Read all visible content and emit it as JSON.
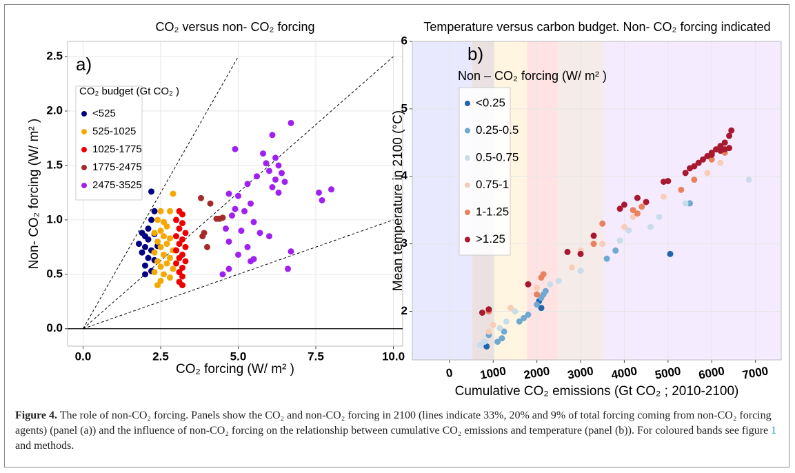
{
  "chart_data": [
    {
      "type": "scatter",
      "title": "CO₂ versus non- CO₂ forcing",
      "panel_label": "a)",
      "x_label": "CO₂ forcing (W/ m² )",
      "y_label": "Non- CO₂ forcing (W/ m² )",
      "xlim": [
        -0.5,
        10.3
      ],
      "ylim": [
        -0.16,
        2.64
      ],
      "xticks": [
        {
          "value": 0,
          "label": "0.0"
        },
        2.5,
        {
          "value": 5,
          "label": "5.0"
        },
        7.5,
        {
          "value": 10,
          "label": "10.0"
        }
      ],
      "yticks": [
        {
          "value": 0,
          "label": "0.0"
        },
        0.5,
        {
          "value": 1,
          "label": "1.0"
        },
        1.5,
        {
          "value": 2,
          "label": "2.0"
        },
        2.5
      ],
      "grid": true,
      "legend_title": "CO₂ budget (Gt CO₂ )",
      "hline": 0,
      "lines": [
        {
          "x": [
            0,
            5
          ],
          "y": [
            0,
            2.5
          ]
        },
        {
          "x": [
            0,
            10
          ],
          "y": [
            0,
            2.5
          ]
        },
        {
          "x": [
            0,
            10
          ],
          "y": [
            0,
            1
          ]
        }
      ],
      "series": [
        {
          "name": "<525",
          "color": "#000080",
          "x": [
            2.2,
            2.3,
            2.2,
            1.9,
            2.0,
            2.1,
            2.3,
            1.8,
            2.0,
            2.2,
            1.9,
            2.1,
            2.3,
            2.0,
            2.2,
            2.0,
            2.4,
            2.1
          ],
          "values": [
            1.26,
            1.08,
            1.0,
            0.88,
            0.85,
            0.82,
            0.87,
            0.78,
            0.75,
            0.72,
            0.7,
            0.65,
            0.63,
            0.58,
            0.53,
            0.5,
            0.76,
            0.92
          ]
        },
        {
          "name": "525-1025",
          "color": "#f5a800",
          "x": [
            2.9,
            2.5,
            2.8,
            2.4,
            2.6,
            2.7,
            2.5,
            2.3,
            2.6,
            2.8,
            2.4,
            2.7,
            2.5,
            2.9,
            2.3,
            2.6,
            2.8,
            2.4,
            2.7,
            2.5,
            2.9,
            2.3,
            2.6,
            2.8,
            2.5,
            2.4
          ],
          "values": [
            1.24,
            1.08,
            1.08,
            1.0,
            0.98,
            0.94,
            0.9,
            0.88,
            0.85,
            0.83,
            0.8,
            0.78,
            0.75,
            0.72,
            0.7,
            0.68,
            0.65,
            0.62,
            0.6,
            0.57,
            0.55,
            0.52,
            0.5,
            0.47,
            0.44,
            0.4
          ]
        },
        {
          "name": "1025-1775",
          "color": "#ee0000",
          "x": [
            3.1,
            3.2,
            3.0,
            3.2,
            3.1,
            3.3,
            3.0,
            3.2,
            3.1,
            3.3,
            3.0,
            3.2,
            3.1,
            3.3,
            3.0,
            3.2,
            3.1,
            3.2,
            3.1,
            3.2
          ],
          "values": [
            1.08,
            1.05,
            1.0,
            0.97,
            0.92,
            0.88,
            0.85,
            0.82,
            0.78,
            0.75,
            0.72,
            0.68,
            0.65,
            0.62,
            0.6,
            0.56,
            0.52,
            0.48,
            0.43,
            0.4
          ]
        },
        {
          "name": "1775-2475",
          "color": "#a52a2a",
          "x": [
            3.8,
            4.1,
            4.3,
            4.4,
            4.5,
            3.9,
            3.85,
            4.0
          ],
          "values": [
            1.2,
            1.15,
            1.01,
            1.01,
            1.02,
            0.88,
            0.85,
            0.75
          ]
        },
        {
          "name": "2475-3525",
          "color": "#a020f0",
          "x": [
            6.7,
            6.1,
            4.9,
            5.8,
            6.2,
            5.9,
            6.3,
            6.0,
            6.4,
            5.6,
            6.2,
            6.5,
            5.3,
            6.1,
            6.3,
            4.7,
            5.0,
            7.6,
            8.0,
            7.7,
            5.4,
            4.9,
            5.2,
            4.8,
            5.5,
            4.6,
            5.1,
            5.7,
            6.0,
            4.7,
            5.3,
            6.7,
            5.0,
            5.4,
            5.5,
            6.6,
            4.5,
            4.7
          ],
          "values": [
            1.89,
            1.78,
            1.65,
            1.61,
            1.57,
            1.52,
            1.5,
            1.45,
            1.43,
            1.4,
            1.37,
            1.35,
            1.33,
            1.3,
            1.25,
            1.24,
            1.22,
            1.25,
            1.28,
            1.18,
            1.15,
            1.1,
            1.08,
            1.04,
            0.98,
            0.92,
            0.9,
            0.88,
            0.85,
            0.8,
            0.75,
            0.71,
            0.68,
            0.62,
            0.64,
            0.55,
            0.5,
            0.55
          ]
        }
      ]
    },
    {
      "type": "scatter",
      "title": "Temperature versus carbon budget. Non- CO₂ forcing indicated",
      "panel_label": "b)",
      "x_label": "Cumulative CO₂ emissions (Gt CO₂ ; 2010-2100)",
      "y_label": "Mean temperature in 2100 (°C)",
      "xlim": [
        -850,
        7590
      ],
      "ylim": [
        1.28,
        6
      ],
      "xticks": [
        0,
        1000,
        2000,
        3000,
        4000,
        5000,
        6000,
        7000
      ],
      "yticks": [
        2,
        3,
        4,
        5,
        6
      ],
      "grid": true,
      "legend_title": "Non – CO₂ forcing (W/ m² )",
      "bands": [
        {
          "to": 1025,
          "color": "#7070ff"
        },
        {
          "from": 525,
          "to": 1775,
          "color": "#ffc040"
        },
        {
          "from": 1775,
          "to": 2475,
          "color": "#ff5050"
        },
        {
          "from": 2475,
          "to": 3525,
          "color": "#c08070"
        },
        {
          "from": 3525,
          "color": "#c080ff"
        }
      ],
      "series": [
        {
          "name": "<0.25",
          "color": "#2166ac",
          "x": [
            5050,
            850,
            2100,
            2050
          ],
          "values": [
            2.85,
            1.48,
            2.05,
            2.15
          ]
        },
        {
          "name": "0.25-0.5",
          "color": "#6fa8d0",
          "x": [
            1200,
            1250,
            1600,
            1800,
            2000,
            2100,
            2200,
            3600,
            3800,
            5500,
            900,
            1100,
            2150,
            1700
          ],
          "values": [
            1.6,
            1.7,
            1.85,
            1.95,
            2.1,
            2.2,
            2.3,
            2.78,
            2.9,
            3.6,
            1.65,
            1.55,
            2.25,
            1.9
          ]
        },
        {
          "name": "0.5-0.75",
          "color": "#c9dcec",
          "x": [
            6850,
            4600,
            3900,
            4800,
            3000,
            2500,
            700,
            800,
            1150,
            1300,
            1500,
            2300,
            5400,
            4100
          ],
          "values": [
            3.95,
            3.25,
            3.05,
            3.4,
            2.6,
            2.45,
            1.5,
            1.55,
            1.75,
            1.85,
            2.0,
            2.4,
            3.6,
            3.2
          ]
        },
        {
          "name": "0.75-1",
          "color": "#f8cdb8",
          "x": [
            900,
            1400,
            2000,
            2800,
            3500,
            4200,
            4900,
            5900,
            6200,
            1000,
            3000,
            4000
          ],
          "values": [
            1.7,
            2.05,
            2.35,
            2.65,
            3.0,
            3.4,
            3.7,
            4.05,
            4.2,
            1.8,
            2.9,
            3.25
          ]
        },
        {
          "name": "1-1.25",
          "color": "#e8825e",
          "x": [
            1800,
            2100,
            3300,
            3500,
            4200,
            4300,
            5300,
            5600,
            6000,
            6300,
            2000,
            2150,
            4400,
            900
          ],
          "values": [
            2.4,
            2.5,
            3.0,
            3.3,
            3.5,
            3.45,
            3.8,
            3.95,
            4.25,
            4.35,
            2.25,
            2.55,
            3.55,
            2.0
          ]
        },
        {
          "name": ">1.25",
          "color": "#a8182e",
          "x": [
            750,
            900,
            1800,
            2700,
            3000,
            3300,
            3900,
            4000,
            4300,
            4500,
            4900,
            5000,
            5400,
            5700,
            5800,
            5900,
            6000,
            6100,
            6200,
            6300,
            6400,
            6450,
            6400,
            6200,
            6000,
            5600,
            5500,
            6300
          ],
          "values": [
            1.98,
            2.03,
            2.4,
            2.88,
            2.85,
            3.12,
            3.52,
            3.58,
            3.68,
            3.62,
            3.92,
            3.93,
            4.05,
            4.2,
            4.25,
            4.3,
            4.35,
            4.4,
            4.45,
            4.5,
            4.6,
            4.68,
            4.42,
            4.38,
            4.32,
            4.15,
            4.12,
            4.4
          ]
        }
      ]
    }
  ],
  "caption": {
    "label": "Figure 4.",
    "text": "The role of non-CO₂ forcing. Panels show the CO₂ and non-CO₂ forcing in 2100 (lines indicate 33%, 20% and 9% of total forcing coming from non-CO₂ forcing agents) (panel (a)) and the influence of non-CO₂ forcing on the relationship between cumulative CO₂ emissions and temperature (panel (b)). For coloured bands see figure ",
    "link": "1",
    "text_end": " and methods."
  }
}
